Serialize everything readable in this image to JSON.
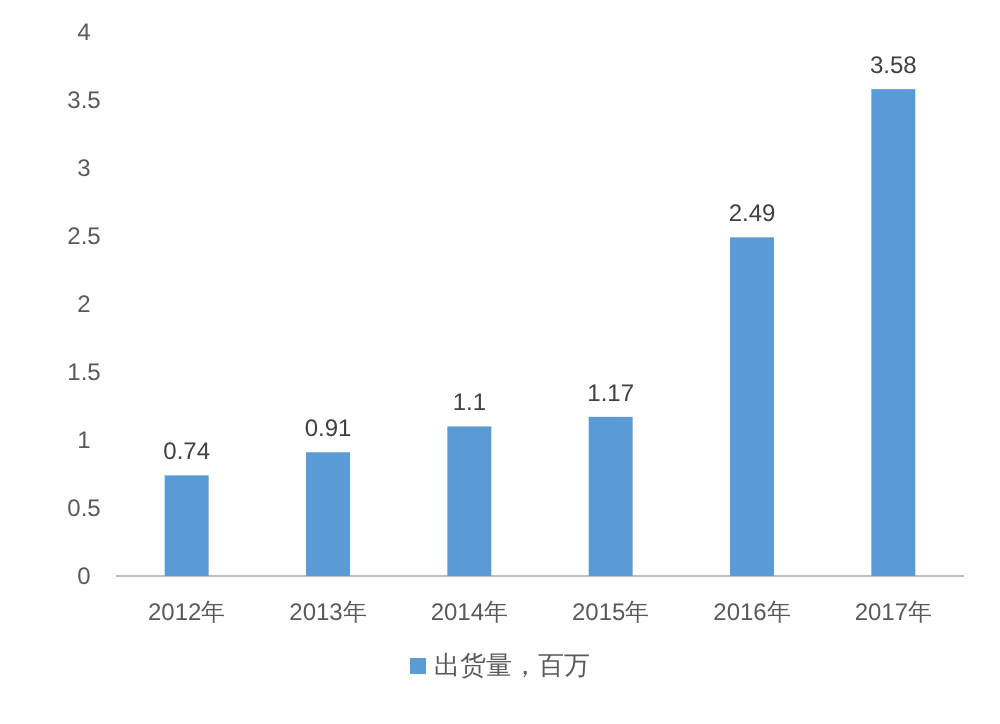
{
  "chart_data": {
    "type": "bar",
    "categories": [
      "2012年",
      "2013年",
      "2014年",
      "2015年",
      "2016年",
      "2017年"
    ],
    "series": [
      {
        "name": "出货量，百万",
        "color": "#5b9bd5",
        "values": [
          0.74,
          0.91,
          1.1,
          1.17,
          2.49,
          3.58
        ]
      }
    ],
    "ylim": [
      0,
      4
    ],
    "yticks": [
      0,
      0.5,
      1,
      1.5,
      2,
      2.5,
      3,
      3.5,
      4
    ],
    "data_labels": true,
    "legend": "bottom",
    "grid": false
  }
}
